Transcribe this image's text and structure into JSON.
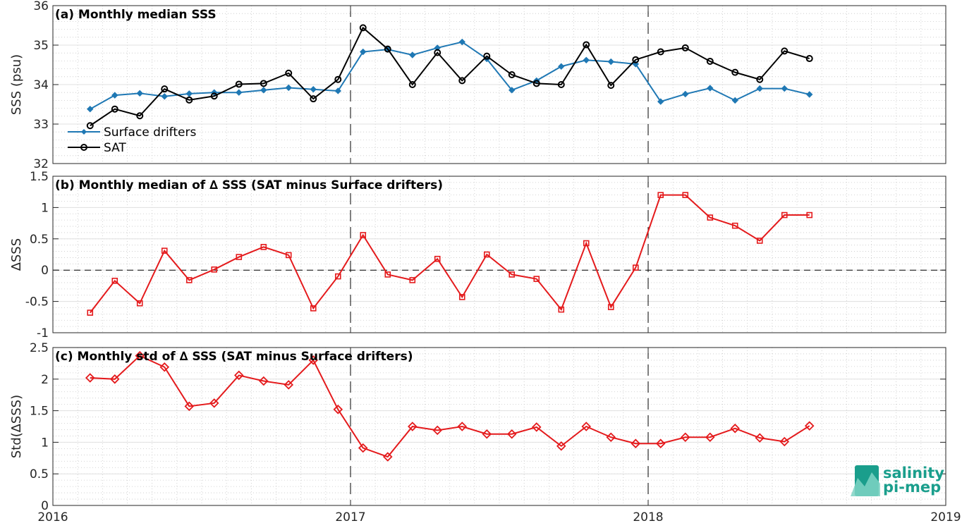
{
  "chart_data": [
    {
      "id": "a",
      "type": "line",
      "title": "(a) Monthly median SSS",
      "ylabel": "SSS (psu)",
      "ylim": [
        32,
        36
      ],
      "yticks": [
        32,
        33,
        34,
        35,
        36
      ],
      "ytick_labels": [
        "32",
        "33",
        "34",
        "35",
        "36"
      ],
      "xlim": [
        2016,
        2019
      ],
      "grid": true,
      "legend_position": "bottom-left",
      "x": [
        2016.125,
        2016.208,
        2016.292,
        2016.375,
        2016.458,
        2016.542,
        2016.625,
        2016.708,
        2016.792,
        2016.875,
        2016.958,
        2017.042,
        2017.125,
        2017.208,
        2017.292,
        2017.375,
        2017.458,
        2017.542,
        2017.625,
        2017.708,
        2017.792,
        2017.875,
        2017.958,
        2018.042,
        2018.125,
        2018.208,
        2018.292,
        2018.375,
        2018.458,
        2018.542
      ],
      "series": [
        {
          "name": "Surface drifters",
          "color": "#1f78b4",
          "marker": "diamond",
          "values": [
            33.38,
            33.73,
            33.78,
            33.7,
            33.77,
            33.8,
            33.8,
            33.86,
            33.92,
            33.88,
            33.84,
            34.83,
            34.89,
            34.75,
            34.93,
            35.08,
            34.65,
            33.86,
            34.1,
            34.46,
            34.62,
            34.58,
            34.52,
            33.57,
            33.76,
            33.91,
            33.6,
            33.9,
            33.9,
            33.75
          ]
        },
        {
          "name": "SAT",
          "color": "#000000",
          "marker": "circle",
          "values": [
            32.96,
            33.38,
            33.21,
            33.89,
            33.61,
            33.71,
            34.01,
            34.03,
            34.29,
            33.64,
            34.13,
            35.44,
            34.9,
            34.0,
            34.81,
            34.1,
            34.72,
            34.25,
            34.03,
            34.0,
            35.01,
            33.98,
            34.63,
            34.83,
            34.93,
            34.59,
            34.31,
            34.13,
            34.85,
            34.66
          ]
        }
      ],
      "vlines": [
        2017,
        2018
      ]
    },
    {
      "id": "b",
      "type": "line",
      "title": "(b) Monthly median of ∆ SSS (SAT minus Surface drifters)",
      "ylabel": "∆SSS",
      "ylim": [
        -1,
        1.5
      ],
      "yticks": [
        -1,
        -0.5,
        0,
        0.5,
        1,
        1.5
      ],
      "ytick_labels": [
        "-1",
        "-0.5",
        "0",
        "0.5",
        "1",
        "1.5"
      ],
      "xlim": [
        2016,
        2019
      ],
      "grid": true,
      "x": [
        2016.125,
        2016.208,
        2016.292,
        2016.375,
        2016.458,
        2016.542,
        2016.625,
        2016.708,
        2016.792,
        2016.875,
        2016.958,
        2017.042,
        2017.125,
        2017.208,
        2017.292,
        2017.375,
        2017.458,
        2017.542,
        2017.625,
        2017.708,
        2017.792,
        2017.875,
        2017.958,
        2018.042,
        2018.125,
        2018.208,
        2018.292,
        2018.375,
        2018.458,
        2018.542
      ],
      "series": [
        {
          "color": "#e41a1c",
          "marker": "square",
          "values": [
            -0.68,
            -0.17,
            -0.53,
            0.31,
            -0.16,
            0.01,
            0.21,
            0.37,
            0.24,
            -0.61,
            -0.1,
            0.56,
            -0.07,
            -0.16,
            0.18,
            -0.43,
            0.25,
            -0.07,
            -0.14,
            -0.63,
            0.43,
            -0.59,
            0.04,
            1.2,
            1.2,
            0.84,
            0.71,
            0.47,
            0.88,
            0.88
          ]
        }
      ],
      "hlines": [
        0
      ],
      "vlines": [
        2017,
        2018
      ]
    },
    {
      "id": "c",
      "type": "line",
      "title": "(c) Monthly std of ∆ SSS (SAT minus Surface drifters)",
      "ylabel": "Std(∆SSS)",
      "ylim": [
        0,
        2.5
      ],
      "yticks": [
        0,
        0.5,
        1,
        1.5,
        2,
        2.5
      ],
      "ytick_labels": [
        "0",
        "0.5",
        "1",
        "1.5",
        "2",
        "2.5"
      ],
      "xlim": [
        2016,
        2019
      ],
      "xticks": [
        2016,
        2017,
        2018,
        2019
      ],
      "xtick_labels": [
        "2016",
        "2017",
        "2018",
        "2019"
      ],
      "grid": true,
      "x": [
        2016.125,
        2016.208,
        2016.292,
        2016.375,
        2016.458,
        2016.542,
        2016.625,
        2016.708,
        2016.792,
        2016.875,
        2016.958,
        2017.042,
        2017.125,
        2017.208,
        2017.292,
        2017.375,
        2017.458,
        2017.542,
        2017.625,
        2017.708,
        2017.792,
        2017.875,
        2017.958,
        2018.042,
        2018.125,
        2018.208,
        2018.292,
        2018.375,
        2018.458,
        2018.542
      ],
      "series": [
        {
          "color": "#e41a1c",
          "marker": "diamond",
          "values": [
            2.02,
            2.0,
            2.37,
            2.19,
            1.57,
            1.62,
            2.06,
            1.97,
            1.91,
            2.3,
            1.52,
            0.91,
            0.77,
            1.25,
            1.19,
            1.25,
            1.13,
            1.13,
            1.24,
            0.94,
            1.25,
            1.08,
            0.98,
            0.98,
            1.08,
            1.08,
            1.22,
            1.07,
            1.01,
            1.26
          ]
        }
      ],
      "vlines": [
        2017,
        2018
      ]
    }
  ],
  "logo": {
    "line1": "salinity",
    "line2": "pi-mep",
    "color": "#1a9e8c"
  }
}
